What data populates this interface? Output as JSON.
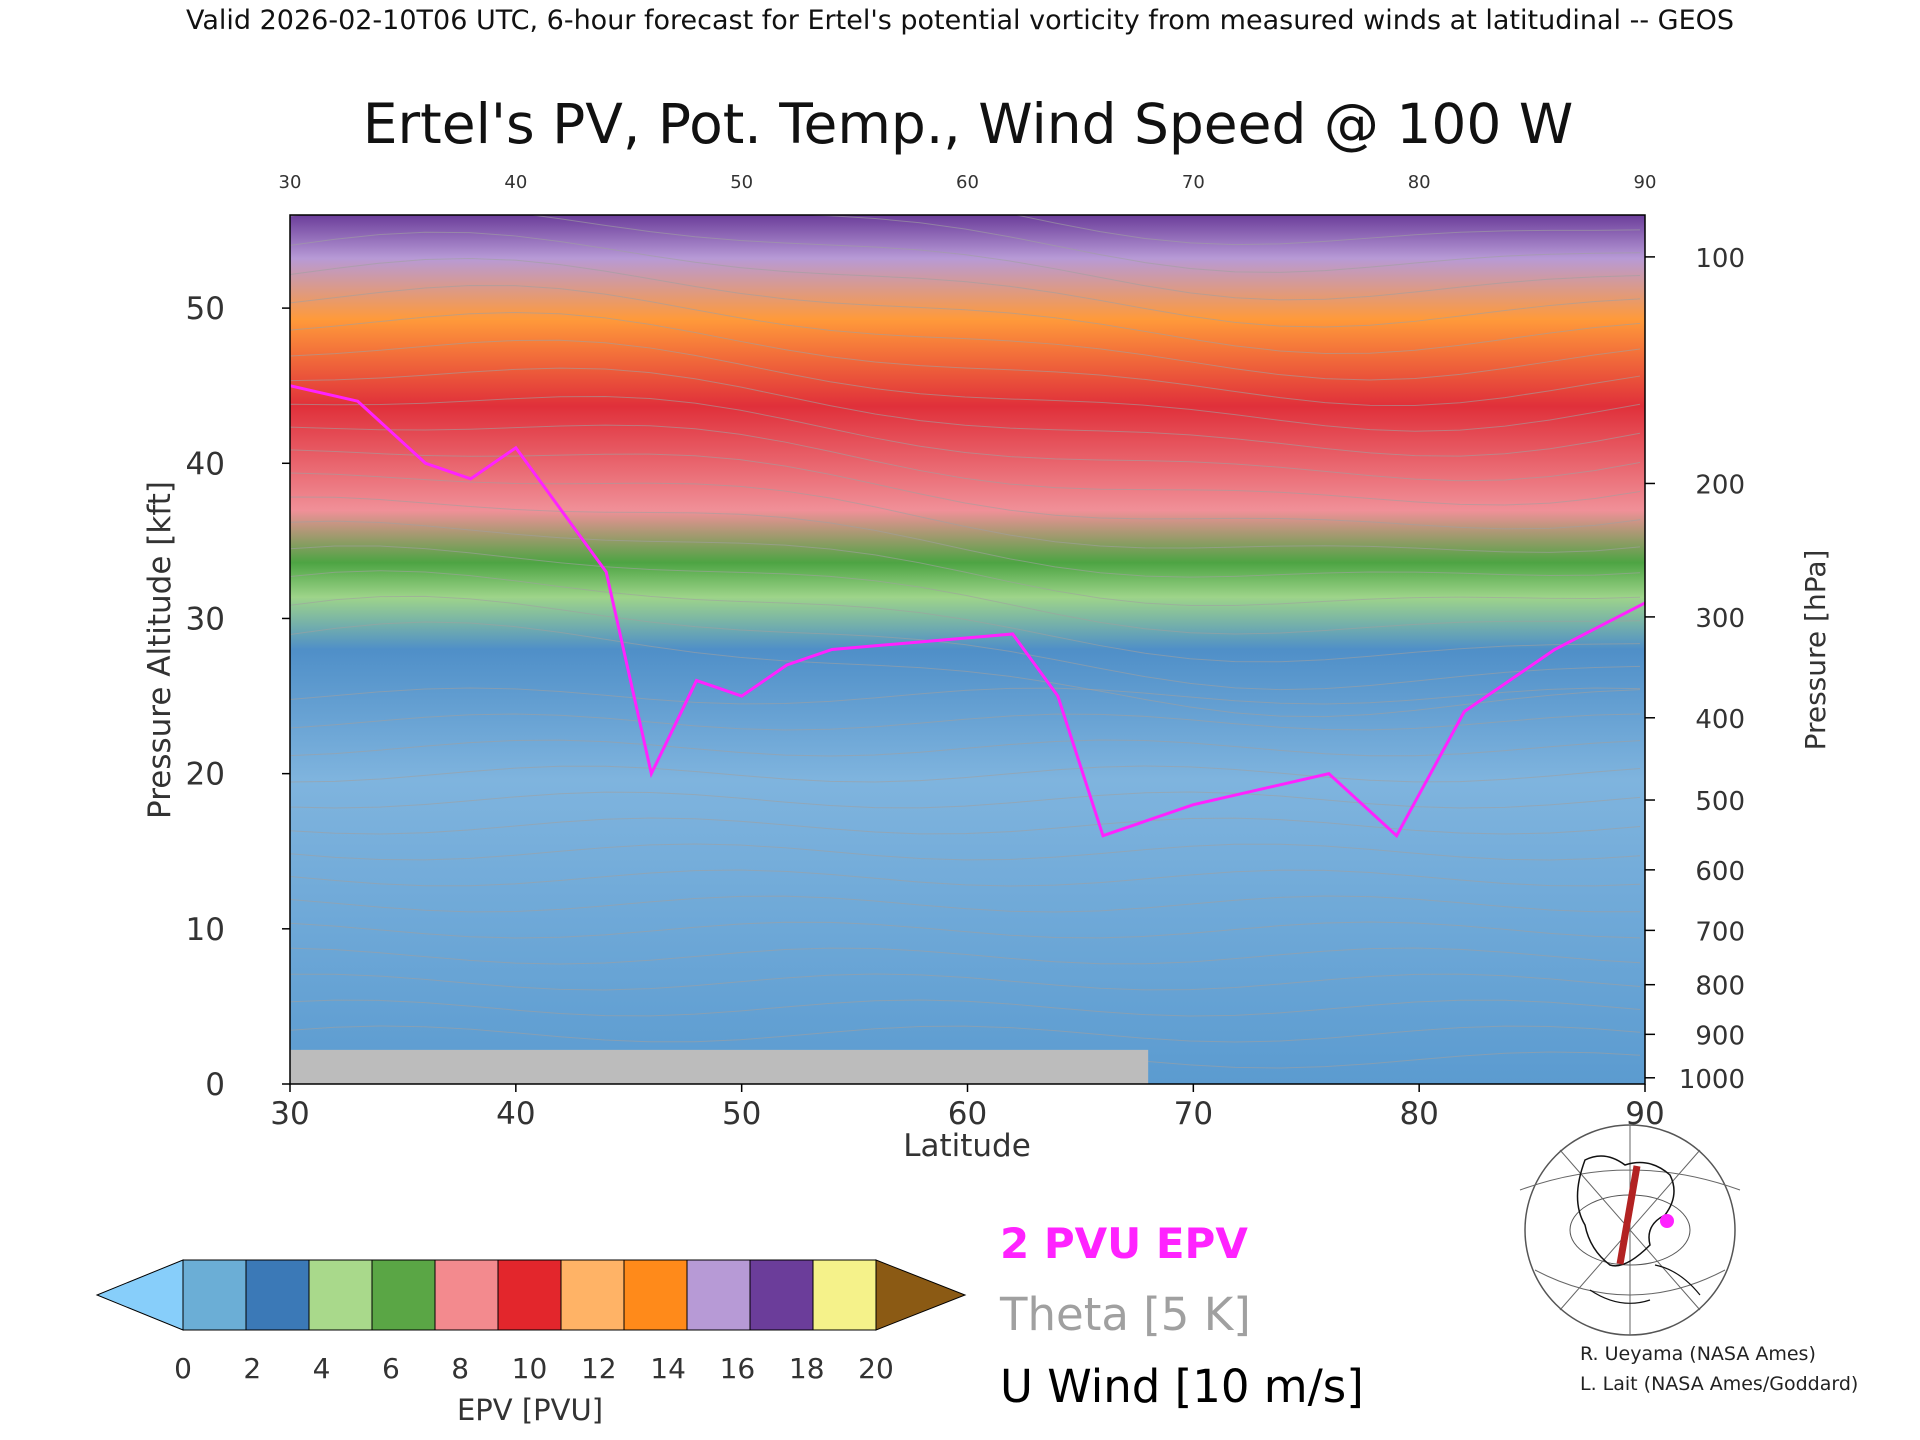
{
  "header": {
    "caption": "Valid 2026-02-10T06 UTC, 6-hour forecast for Ertel's potential vorticity from measured winds at latitudinal -- GEOS",
    "title": "Ertel's PV, Pot. Temp., Wind Speed @ 100 W"
  },
  "chart_data": {
    "type": "heatmap",
    "title": "Ertel's PV, Pot. Temp., Wind Speed @ 100 W",
    "xlabel": "Latitude",
    "ylabel": "Pressure Altitude [kft]",
    "ylabel_right": "Pressure [hPa]",
    "xlim": [
      30,
      90
    ],
    "ylim": [
      0,
      56
    ],
    "x_ticks": [
      30,
      40,
      50,
      60,
      70,
      80,
      90
    ],
    "y_ticks": [
      0,
      10,
      20,
      30,
      40,
      50
    ],
    "pressure_ticks": [
      {
        "hpa": 100,
        "kft": 53.3
      },
      {
        "hpa": 200,
        "kft": 38.7
      },
      {
        "hpa": 300,
        "kft": 30.1
      },
      {
        "hpa": 400,
        "kft": 23.6
      },
      {
        "hpa": 500,
        "kft": 18.3
      },
      {
        "hpa": 600,
        "kft": 13.8
      },
      {
        "hpa": 700,
        "kft": 9.9
      },
      {
        "hpa": 800,
        "kft": 6.4
      },
      {
        "hpa": 900,
        "kft": 3.2
      },
      {
        "hpa": 1000,
        "kft": 0.4
      }
    ],
    "epv_colorbar": {
      "label": "EPV [PVU]",
      "ticks": [
        0,
        2,
        4,
        6,
        8,
        10,
        12,
        14,
        16,
        18,
        20
      ],
      "colors": [
        "#6baed6",
        "#3b79b7",
        "#a9d98b",
        "#5aa645",
        "#f38a8e",
        "#e3262c",
        "#ffb366",
        "#ff8a1a",
        "#b79ad6",
        "#6b3d9a",
        "#f5f28a",
        "#8b5a14"
      ],
      "under_color": "#87cefa",
      "over_color": "#8b5a14"
    },
    "tropopause_2pvu_kft": [
      {
        "lat": 30,
        "kft": 45
      },
      {
        "lat": 33,
        "kft": 44
      },
      {
        "lat": 36,
        "kft": 40
      },
      {
        "lat": 38,
        "kft": 39
      },
      {
        "lat": 40,
        "kft": 41
      },
      {
        "lat": 42,
        "kft": 37
      },
      {
        "lat": 44,
        "kft": 33
      },
      {
        "lat": 46,
        "kft": 20
      },
      {
        "lat": 48,
        "kft": 26
      },
      {
        "lat": 50,
        "kft": 25
      },
      {
        "lat": 52,
        "kft": 27
      },
      {
        "lat": 54,
        "kft": 28
      },
      {
        "lat": 58,
        "kft": 28.5
      },
      {
        "lat": 62,
        "kft": 29
      },
      {
        "lat": 64,
        "kft": 25
      },
      {
        "lat": 66,
        "kft": 16
      },
      {
        "lat": 70,
        "kft": 18
      },
      {
        "lat": 76,
        "kft": 20
      },
      {
        "lat": 79,
        "kft": 16
      },
      {
        "lat": 82,
        "kft": 24
      },
      {
        "lat": 86,
        "kft": 28
      },
      {
        "lat": 90,
        "kft": 31
      }
    ],
    "legend": {
      "epv_line": "2 PVU EPV",
      "theta": "Theta [5 K]",
      "wind": "U Wind [10 m/s]"
    },
    "colors": {
      "epv_line": "#ff22ff",
      "theta": "#a0a0a0",
      "wind": "#000000",
      "terrain": "#bcbcbc"
    }
  },
  "credits": {
    "line1": "R. Ueyama (NASA Ames)",
    "line2": "L. Lait (NASA Ames/Goddard)"
  }
}
